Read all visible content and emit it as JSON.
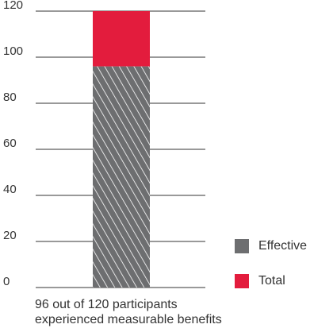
{
  "chart_data": {
    "type": "bar",
    "categories": [
      ""
    ],
    "series": [
      {
        "name": "Effective",
        "values": [
          96
        ],
        "color": "#6d6e70",
        "pattern": "diagonal-hatch"
      },
      {
        "name": "Total",
        "values": [
          120
        ],
        "color": "#e31c3d"
      }
    ],
    "ylim": [
      0,
      120
    ],
    "yticks": [
      0,
      20,
      40,
      60,
      80,
      100,
      120
    ],
    "grid": true,
    "legend_position": "bottom-right",
    "caption_lines": [
      "96 out of 120 participants",
      "experienced measurable benefits"
    ]
  }
}
